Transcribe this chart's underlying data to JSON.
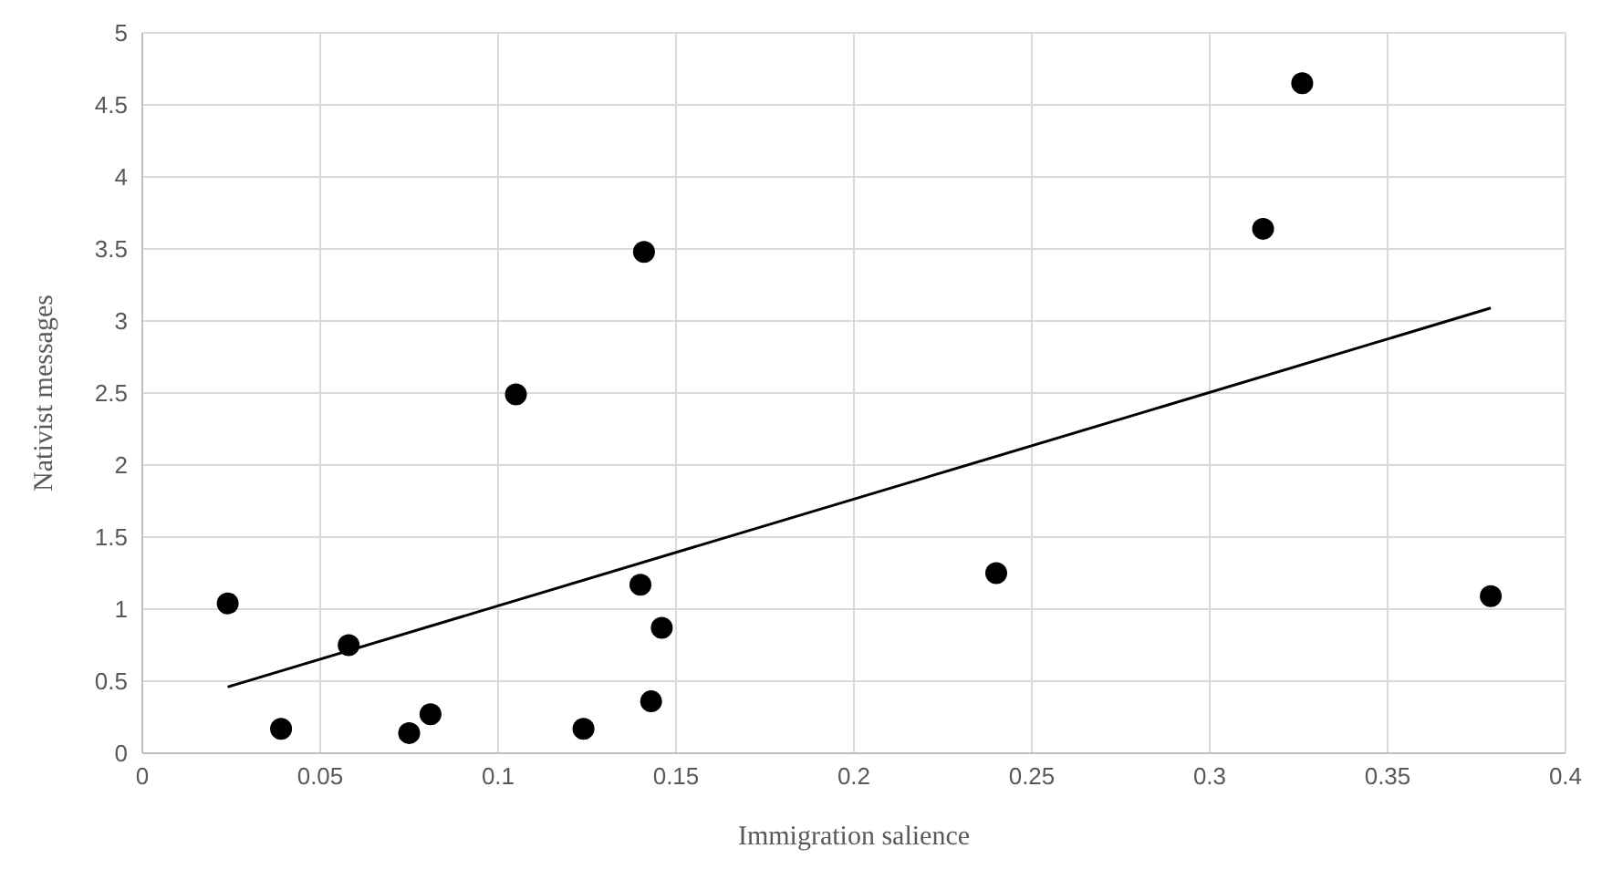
{
  "chart_data": {
    "type": "scatter",
    "xlabel": "Immigration salience",
    "ylabel": "Nativist messages",
    "xlim": [
      0,
      0.4
    ],
    "xticks": [
      0,
      0.05,
      0.1,
      0.15,
      0.2,
      0.25,
      0.3,
      0.35,
      0.4
    ],
    "ylim": [
      0,
      5
    ],
    "yticks": [
      0,
      0.5,
      1,
      1.5,
      2,
      2.5,
      3,
      3.5,
      4,
      4.5,
      5
    ],
    "grid": true,
    "legend": false,
    "series": [
      {
        "color": "#000000",
        "marker": "circle",
        "x": [
          0.024,
          0.039,
          0.058,
          0.075,
          0.081,
          0.105,
          0.124,
          0.14,
          0.141,
          0.143,
          0.146,
          0.24,
          0.315,
          0.326,
          0.379
        ],
        "values": [
          1.04,
          0.17,
          0.75,
          0.14,
          0.27,
          2.49,
          0.17,
          1.17,
          3.48,
          0.36,
          0.87,
          1.25,
          3.64,
          4.65,
          1.09
        ]
      },
      {
        "type": "line",
        "color": "#000000",
        "marker": "none",
        "line_style": "solid",
        "x": [
          0.024,
          0.379
        ],
        "values": [
          0.46,
          3.09
        ]
      }
    ]
  }
}
